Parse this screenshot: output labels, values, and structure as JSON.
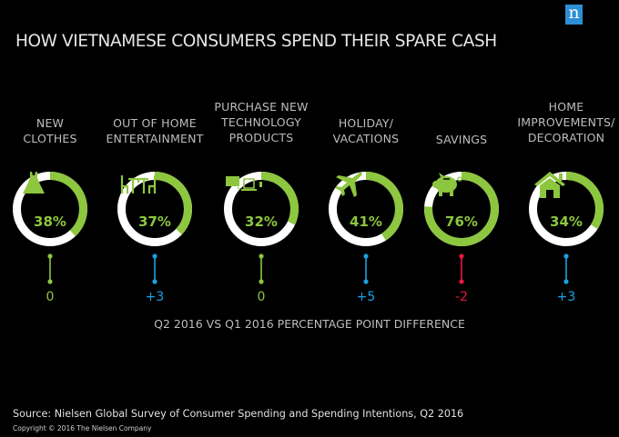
{
  "logo": {
    "letter": "n",
    "color": "#2d8fd6"
  },
  "title": "HOW VIETNAMESE CONSUMERS SPEND THEIR SPARE CASH",
  "subtitle": "Q2 2016 VS Q1 2016 PERCENTAGE POINT DIFFERENCE",
  "source": "Source: Nielsen Global Survey of Consumer Spending and Spending Intentions, Q2 2016",
  "copyright": "Copyright © 2016 The Nielsen Company",
  "colors": {
    "ring_fill": "#8dc63f",
    "ring_track": "#ffffff",
    "positive": "#1ba1e2",
    "zero": "#8dc63f",
    "negative": "#e8173f"
  },
  "categories": [
    {
      "label_lines": [
        "NEW",
        "CLOTHES"
      ],
      "label": "NEW\nCLOTHES",
      "percent": 38,
      "percent_text": "38%",
      "diff": 0,
      "diff_text": "0",
      "icon": "dress-icon"
    },
    {
      "label_lines": [
        "OUT OF HOME",
        "ENTERTAINMENT"
      ],
      "label": "OUT OF HOME\nENTERTAINMENT",
      "percent": 37,
      "percent_text": "37%",
      "diff": 3,
      "diff_text": "+3",
      "icon": "dining-table-icon"
    },
    {
      "label_lines": [
        "PURCHASE NEW",
        "TECHNOLOGY",
        "PRODUCTS"
      ],
      "label": "PURCHASE NEW\nTECHNOLOGY\nPRODUCTS",
      "percent": 32,
      "percent_text": "32%",
      "diff": 0,
      "diff_text": "0",
      "icon": "devices-icon"
    },
    {
      "label_lines": [
        "HOLIDAY/",
        "VACATIONS"
      ],
      "label": "HOLIDAY/\nVACATIONS",
      "percent": 41,
      "percent_text": "41%",
      "diff": 5,
      "diff_text": "+5",
      "icon": "airplane-icon"
    },
    {
      "label_lines": [
        "SAVINGS"
      ],
      "label": "SAVINGS",
      "percent": 76,
      "percent_text": "76%",
      "diff": -2,
      "diff_text": "-2",
      "icon": "piggy-bank-icon"
    },
    {
      "label_lines": [
        "HOME",
        "IMPROVEMENTS/",
        "DECORATION"
      ],
      "label": "HOME\nIMPROVEMENTS/\nDECORATION",
      "percent": 34,
      "percent_text": "34%",
      "diff": 3,
      "diff_text": "+3",
      "icon": "house-icon"
    }
  ],
  "chart_data": {
    "type": "pie",
    "subtype": "donut-set",
    "title": "HOW VIETNAMESE CONSUMERS SPEND THEIR SPARE CASH",
    "categories": [
      "New Clothes",
      "Out of Home Entertainment",
      "Purchase New Technology Products",
      "Holiday/Vacations",
      "Savings",
      "Home Improvements/Decoration"
    ],
    "series": [
      {
        "name": "Q2 2016 share of consumers (%)",
        "values": [
          38,
          37,
          32,
          41,
          76,
          34
        ]
      },
      {
        "name": "Q2 2016 vs Q1 2016 percentage point difference",
        "values": [
          0,
          3,
          0,
          5,
          -2,
          3
        ]
      }
    ],
    "xlabel": "",
    "ylabel": "",
    "annotations": [
      "Q2 2016 VS Q1 2016 PERCENTAGE POINT DIFFERENCE"
    ],
    "source": "Nielsen Global Survey of Consumer Spending and Spending Intentions, Q2 2016"
  }
}
